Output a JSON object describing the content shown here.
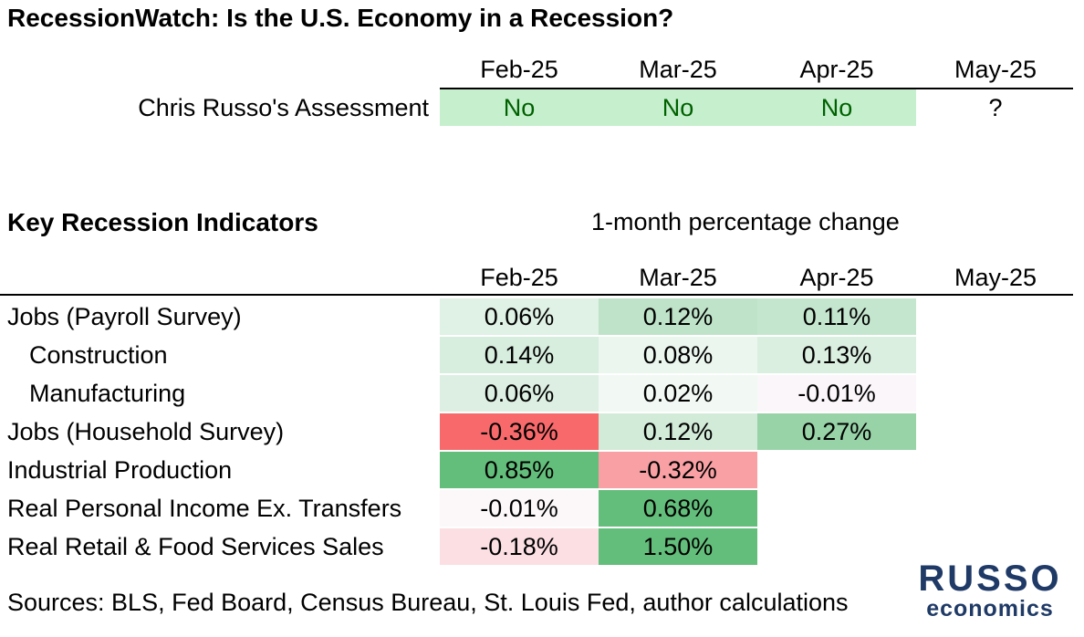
{
  "title": "RecessionWatch: Is the U.S. Economy in a Recession?",
  "months": [
    "Feb-25",
    "Mar-25",
    "Apr-25",
    "May-25"
  ],
  "assessment": {
    "label": "Chris Russo's Assessment",
    "values": [
      "No",
      "No",
      "No",
      "?"
    ],
    "colors": [
      "#c6efce",
      "#c6efce",
      "#c6efce",
      "#ffffff"
    ],
    "text_colors": [
      "#006100",
      "#006100",
      "#006100",
      "#000000"
    ]
  },
  "indicators": {
    "title": "Key Recession Indicators",
    "subtitle": "1-month percentage change",
    "rows": [
      {
        "label": "Jobs (Payroll Survey)",
        "indent": false,
        "values": [
          "0.06%",
          "0.12%",
          "0.11%",
          ""
        ],
        "colors": [
          "#e0f1e5",
          "#bfe3c9",
          "#c5e6ce",
          ""
        ]
      },
      {
        "label": "Construction",
        "indent": true,
        "values": [
          "0.14%",
          "0.08%",
          "0.13%",
          ""
        ],
        "colors": [
          "#d7edde",
          "#eaf6ee",
          "#dbefe1",
          ""
        ]
      },
      {
        "label": "Manufacturing",
        "indent": true,
        "values": [
          "0.06%",
          "0.02%",
          "-0.01%",
          ""
        ],
        "colors": [
          "#dcefe2",
          "#f2f9f4",
          "#fbf6fa",
          ""
        ]
      },
      {
        "label": "Jobs (Household Survey)",
        "indent": false,
        "values": [
          "-0.36%",
          "0.12%",
          "0.27%",
          ""
        ],
        "colors": [
          "#f8696b",
          "#d2ebd8",
          "#98d3a8",
          ""
        ]
      },
      {
        "label": "Industrial Production",
        "indent": false,
        "values": [
          "0.85%",
          "-0.32%",
          "",
          ""
        ],
        "colors": [
          "#63be7b",
          "#f8a0a4",
          "",
          ""
        ]
      },
      {
        "label": "Real Personal Income Ex. Transfers",
        "indent": false,
        "values": [
          "-0.01%",
          "0.68%",
          "",
          ""
        ],
        "colors": [
          "#fcf8fa",
          "#63be7b",
          "",
          ""
        ]
      },
      {
        "label": "Real Retail & Food Services Sales",
        "indent": false,
        "values": [
          "-0.18%",
          "1.50%",
          "",
          ""
        ],
        "colors": [
          "#fbdfe3",
          "#63be7b",
          "",
          ""
        ]
      }
    ]
  },
  "sources": "Sources: BLS, Fed Board, Census Bureau, St. Louis Fed, author calculations",
  "logo": {
    "line1": "RUSSO",
    "line2": "economics"
  }
}
